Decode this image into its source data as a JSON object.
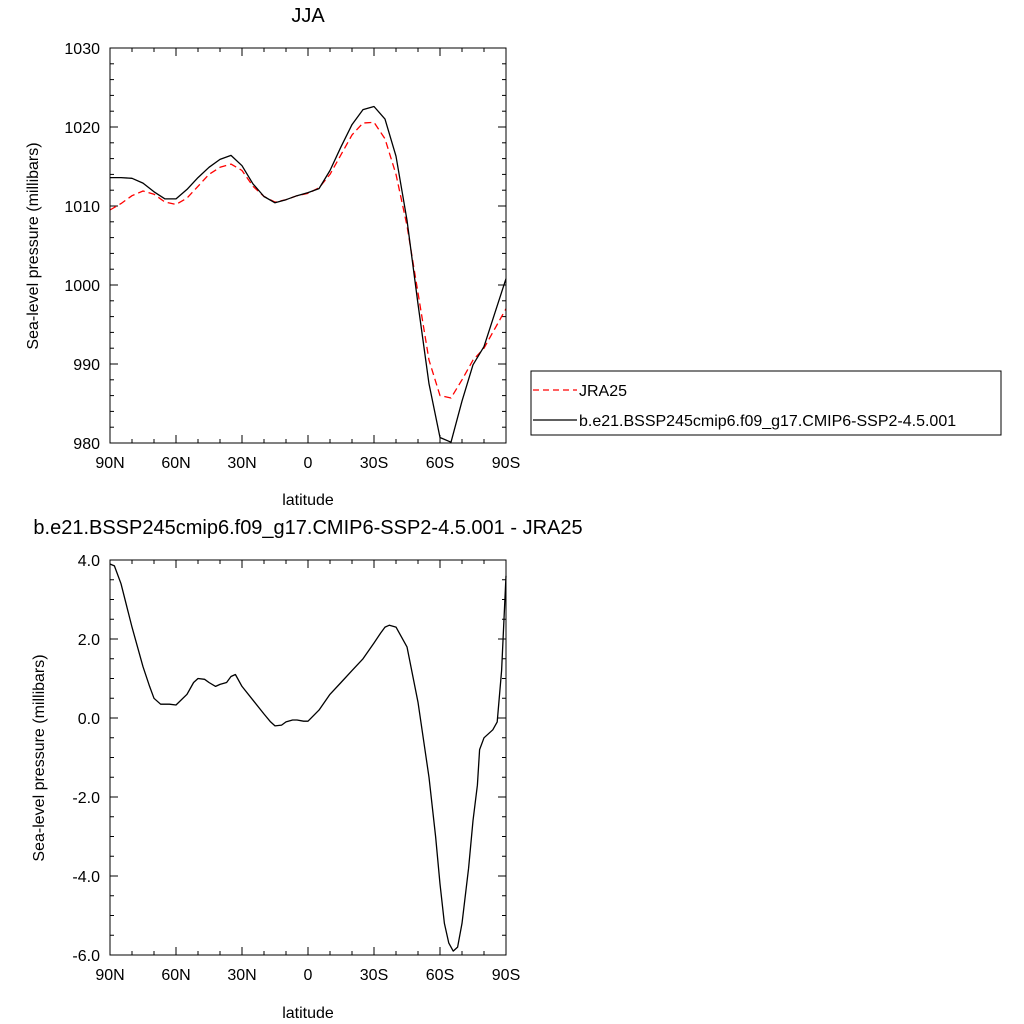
{
  "chart_data": [
    {
      "type": "line",
      "title": "JJA",
      "xlabel": "latitude",
      "ylabel": "Sea-level pressure (millibars)",
      "x_ticks": [
        "90N",
        "60N",
        "30N",
        "0",
        "30S",
        "60S",
        "90S"
      ],
      "y_ticks": [
        "980",
        "990",
        "1000",
        "1010",
        "1020",
        "1030"
      ],
      "xlim": [
        90,
        -90
      ],
      "ylim": [
        980,
        1030
      ],
      "legend_position": "right",
      "series": [
        {
          "name": "JRA25",
          "color": "#ff0000",
          "style": "dashed",
          "x": [
            90,
            85,
            80,
            75,
            70,
            65,
            60,
            55,
            50,
            45,
            40,
            35,
            30,
            25,
            20,
            15,
            10,
            5,
            0,
            -5,
            -10,
            -15,
            -20,
            -25,
            -30,
            -35,
            -40,
            -45,
            -50,
            -55,
            -60,
            -65,
            -70,
            -75,
            -80,
            -85,
            -90
          ],
          "values": [
            1009.5,
            1010.3,
            1011.3,
            1011.9,
            1011.5,
            1010.5,
            1010.2,
            1011.0,
            1012.5,
            1014.0,
            1014.9,
            1015.3,
            1014.5,
            1012.5,
            1011.2,
            1010.5,
            1010.8,
            1011.3,
            1011.6,
            1012.3,
            1014.0,
            1016.5,
            1019.0,
            1020.5,
            1020.6,
            1018.5,
            1014.0,
            1007.5,
            999.0,
            990.5,
            986.0,
            985.7,
            988.0,
            990.5,
            992.0,
            994.5,
            997.0
          ]
        },
        {
          "name": "b.e21.BSSP245cmip6.f09_g17.CMIP6-SSP2-4.5.001",
          "color": "#000000",
          "style": "solid",
          "x": [
            90,
            85,
            80,
            75,
            70,
            65,
            60,
            55,
            50,
            45,
            40,
            35,
            30,
            25,
            20,
            15,
            10,
            5,
            0,
            -5,
            -10,
            -15,
            -20,
            -25,
            -30,
            -35,
            -40,
            -45,
            -50,
            -55,
            -60,
            -65,
            -70,
            -75,
            -80,
            -85,
            -90
          ],
          "values": [
            1013.6,
            1013.6,
            1013.5,
            1012.9,
            1011.8,
            1010.9,
            1010.9,
            1012.1,
            1013.6,
            1014.9,
            1015.9,
            1016.4,
            1015.1,
            1012.8,
            1011.2,
            1010.4,
            1010.8,
            1011.3,
            1011.7,
            1012.2,
            1014.5,
            1017.5,
            1020.3,
            1022.2,
            1022.6,
            1021.0,
            1016.3,
            1008.2,
            997.6,
            987.5,
            980.7,
            980.1,
            985.3,
            989.9,
            992.2,
            996.5,
            1000.8
          ]
        }
      ]
    },
    {
      "type": "line",
      "title": "b.e21.BSSP245cmip6.f09_g17.CMIP6-SSP2-4.5.001 - JRA25",
      "xlabel": "latitude",
      "ylabel": "Sea-level pressure (millibars)",
      "x_ticks": [
        "90N",
        "60N",
        "30N",
        "0",
        "30S",
        "60S",
        "90S"
      ],
      "y_ticks": [
        "-6.0",
        "-4.0",
        "-2.0",
        "0.0",
        "2.0",
        "4.0"
      ],
      "xlim": [
        90,
        -90
      ],
      "ylim": [
        -6,
        4
      ],
      "series": [
        {
          "color": "#000000",
          "style": "solid",
          "x": [
            90,
            88,
            85,
            80,
            75,
            72,
            70,
            67,
            63,
            60,
            55,
            52,
            50,
            47,
            45,
            42,
            40,
            37,
            35,
            33,
            30,
            25,
            20,
            17,
            15,
            12,
            10,
            7,
            5,
            2,
            0,
            -5,
            -10,
            -15,
            -20,
            -25,
            -30,
            -33,
            -35,
            -37,
            -40,
            -45,
            -50,
            -55,
            -58,
            -60,
            -62,
            -64,
            -66,
            -68,
            -70,
            -73,
            -75,
            -77,
            -78,
            -80,
            -82,
            -84,
            -86,
            -88,
            -90
          ],
          "values": [
            3.9,
            3.85,
            3.4,
            2.3,
            1.3,
            0.8,
            0.5,
            0.35,
            0.35,
            0.33,
            0.6,
            0.9,
            1.0,
            0.98,
            0.9,
            0.8,
            0.85,
            0.9,
            1.05,
            1.1,
            0.8,
            0.45,
            0.1,
            -0.1,
            -0.2,
            -0.18,
            -0.1,
            -0.05,
            -0.05,
            -0.08,
            -0.08,
            0.2,
            0.6,
            0.9,
            1.2,
            1.5,
            1.9,
            2.15,
            2.3,
            2.35,
            2.3,
            1.8,
            0.4,
            -1.5,
            -3.0,
            -4.2,
            -5.2,
            -5.7,
            -5.9,
            -5.8,
            -5.2,
            -3.8,
            -2.6,
            -1.7,
            -0.8,
            -0.5,
            -0.4,
            -0.3,
            -0.1,
            1.2,
            3.6
          ]
        }
      ]
    }
  ]
}
